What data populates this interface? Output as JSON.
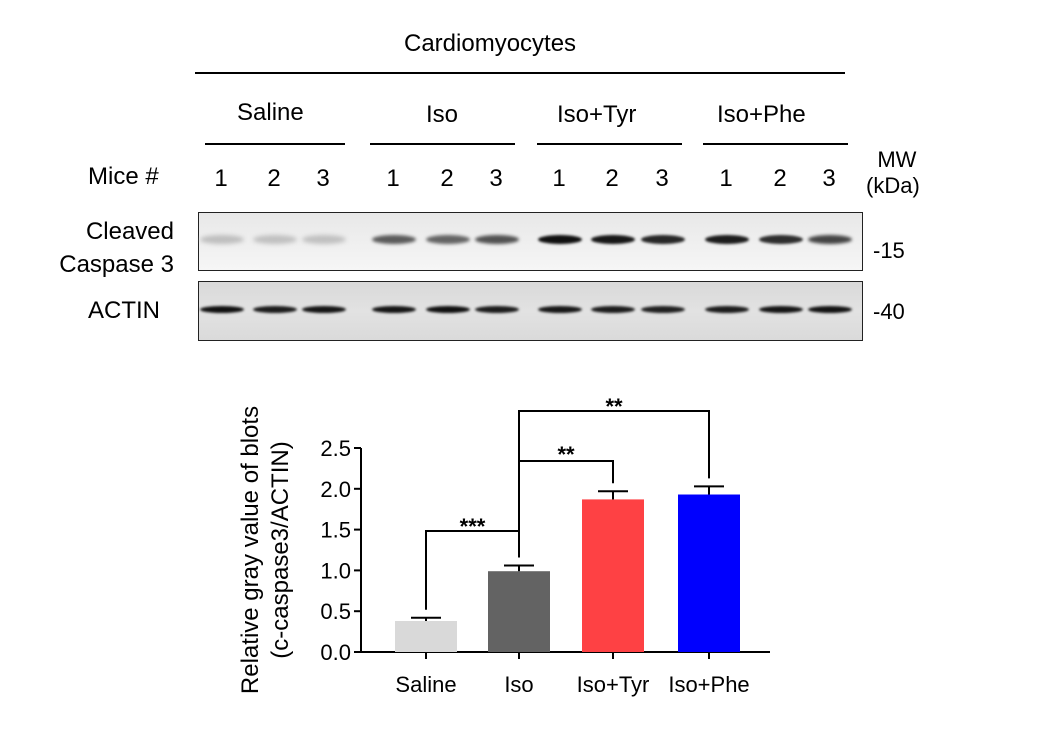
{
  "figure": {
    "cell_type_title": "Cardiomyocytes",
    "groups": [
      "Saline",
      "Iso",
      "Iso+Tyr",
      "Iso+Phe"
    ],
    "mice_label": "Mice #",
    "lane_numbers": [
      "1",
      "2",
      "3",
      "1",
      "2",
      "3",
      "1",
      "2",
      "3",
      "1",
      "2",
      "3"
    ],
    "mw_label_line1": "MW",
    "mw_label_line2": "(kDa)",
    "blot1_label_line1": "Cleaved",
    "blot1_label_line2": "Caspase 3",
    "blot1_mw": "-15",
    "blot2_label": "ACTIN",
    "blot2_mw": "-40",
    "blot1_band_intensity": [
      0.18,
      0.17,
      0.17,
      0.62,
      0.58,
      0.66,
      0.95,
      0.92,
      0.85,
      0.9,
      0.82,
      0.72
    ],
    "blot2_band_intensity": [
      0.95,
      0.9,
      0.93,
      0.93,
      0.95,
      0.9,
      0.92,
      0.9,
      0.88,
      0.9,
      0.93,
      0.94
    ]
  },
  "chart_data": {
    "type": "bar",
    "ylabel_line1": "Relative gray value of blots",
    "ylabel_line2": "(c-caspase3/ACTIN)",
    "categories": [
      "Saline",
      "Iso",
      "Iso+Tyr",
      "Iso+Phe"
    ],
    "values": [
      0.38,
      0.99,
      1.87,
      1.93
    ],
    "errors": [
      0.04,
      0.07,
      0.1,
      0.1
    ],
    "colors": [
      "#d9d9d9",
      "#636363",
      "#fe4144",
      "#0000fe"
    ],
    "ylim": [
      0,
      2.5
    ],
    "yticks": [
      "0.0",
      "0.5",
      "1.0",
      "1.5",
      "2.0",
      "2.5"
    ],
    "grid": false,
    "annotations": [
      {
        "from": "Saline",
        "to": "Iso",
        "text": "***"
      },
      {
        "from": "Iso",
        "to": "Iso+Tyr",
        "text": "**"
      },
      {
        "from": "Iso",
        "to": "Iso+Phe",
        "text": "**"
      }
    ]
  }
}
